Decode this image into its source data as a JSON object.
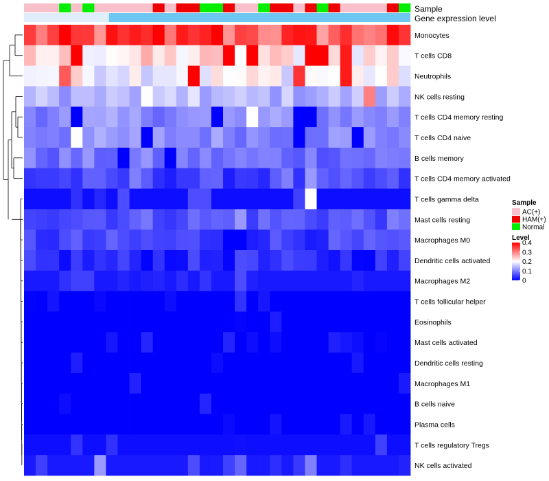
{
  "chart_data": {
    "type": "heatmap",
    "annotation_tracks": [
      "Sample",
      "Gene expression level"
    ],
    "columns": 33,
    "sample_groups": [
      "AC",
      "AC",
      "AC",
      "Normal",
      "AC",
      "Normal",
      "AC",
      "AC",
      "AC",
      "AC",
      "AC",
      "HAM",
      "AC",
      "HAM",
      "HAM",
      "Normal",
      "Normal",
      "HAM",
      "AC",
      "AC",
      "Normal",
      "HAM",
      "HAM",
      "AC",
      "HAM",
      "Normal",
      "HAM",
      "AC",
      "AC",
      "AC",
      "AC",
      "HAM",
      "Normal"
    ],
    "rows": [
      "Monocytes",
      "T cells CD8",
      "Neutrophils",
      "NK cells resting",
      "T cells CD4 memory resting",
      "T cells CD4 naive",
      "B cells memory",
      "T cells CD4 memory activated",
      "T cells gamma delta",
      "Mast cells resting",
      "Macrophages M0",
      "Dendritic cells activated",
      "Macrophages M2",
      "T cells follicular helper",
      "Eosinophils",
      "Mast cells activated",
      "Dendritic cells resting",
      "Macrophages M1",
      "B cells naive",
      "Plasma cells",
      "T cells regulatory  Tregs",
      "NK cells activated"
    ],
    "row_base_levels": [
      0.33,
      0.22,
      0.2,
      0.14,
      0.11,
      0.11,
      0.09,
      0.05,
      0.01,
      0.07,
      0.05,
      0.03,
      0.02,
      0.0,
      0.0,
      0.0,
      0.0,
      0.0,
      0.0,
      0.0,
      0.01,
      0.02
    ],
    "row_highlights": [
      [
        [
          11,
          0.4
        ],
        [
          13,
          0.38
        ],
        [
          14,
          0.36
        ],
        [
          16,
          0.4
        ],
        [
          18,
          0.35
        ],
        [
          32,
          0.36
        ]
      ],
      [
        [
          4,
          0.4
        ],
        [
          17,
          0.4
        ],
        [
          19,
          0.4
        ],
        [
          24,
          0.4
        ],
        [
          25,
          0.4
        ],
        [
          27,
          0.38
        ]
      ],
      [
        [
          3,
          0.33
        ],
        [
          14,
          0.4
        ],
        [
          23,
          0.36
        ],
        [
          27,
          0.38
        ]
      ],
      [
        [
          29,
          0.3
        ],
        [
          14,
          0.18
        ],
        [
          10,
          0.2
        ]
      ],
      [
        [
          4,
          0.0
        ],
        [
          16,
          0.0
        ],
        [
          23,
          0.0
        ],
        [
          24,
          0.0
        ],
        [
          19,
          0.2
        ]
      ],
      [
        [
          4,
          0.2
        ],
        [
          10,
          0.0
        ],
        [
          23,
          0.0
        ],
        [
          28,
          0.0
        ]
      ],
      [
        [
          8,
          0.0
        ],
        [
          12,
          0.0
        ]
      ],
      [
        [
          9,
          0.1
        ],
        [
          22,
          0.1
        ],
        [
          24,
          0.12
        ]
      ],
      [
        [
          8,
          0.06
        ],
        [
          14,
          0.06
        ],
        [
          15,
          0.06
        ],
        [
          23,
          0.05
        ],
        [
          24,
          0.2
        ]
      ],
      [
        [
          18,
          0.12
        ]
      ],
      [
        [
          17,
          0.0
        ],
        [
          18,
          0.0
        ]
      ],
      [
        [
          18,
          0.06
        ]
      ],
      [
        [
          4,
          0.05
        ],
        [
          5,
          0.05
        ],
        [
          18,
          0.06
        ]
      ],
      [
        [
          18,
          0.04
        ]
      ],
      [],
      [],
      [],
      [],
      [],
      [],
      [
        [
          4,
          0.04
        ],
        [
          30,
          0.05
        ]
      ],
      [
        [
          6,
          0.12
        ],
        [
          14,
          0.06
        ],
        [
          17,
          0.05
        ],
        [
          18,
          0.08
        ],
        [
          24,
          0.1
        ]
      ]
    ],
    "color_scale": {
      "low": "#0000ff",
      "mid": "#ffffff",
      "high": "#ff0000",
      "min": 0,
      "max": 0.4
    },
    "group_colors": {
      "AC": "#f8c0cb",
      "HAM": "#ee0000",
      "Normal": "#00ee00"
    },
    "expression_bar_color": "#6ec6f2",
    "legend": {
      "sample_title": "Sample",
      "sample_entries": [
        {
          "key": "AC",
          "label": "AC(+)"
        },
        {
          "key": "HAM",
          "label": "HAM(+)"
        },
        {
          "key": "Normal",
          "label": "Normal"
        }
      ],
      "level_title": "Level",
      "level_ticks": [
        "0.4",
        "0.3",
        "0.2",
        "0.1",
        "0"
      ],
      "level_tick_values": [
        0.4,
        0.3,
        0.2,
        0.1,
        0
      ]
    }
  }
}
